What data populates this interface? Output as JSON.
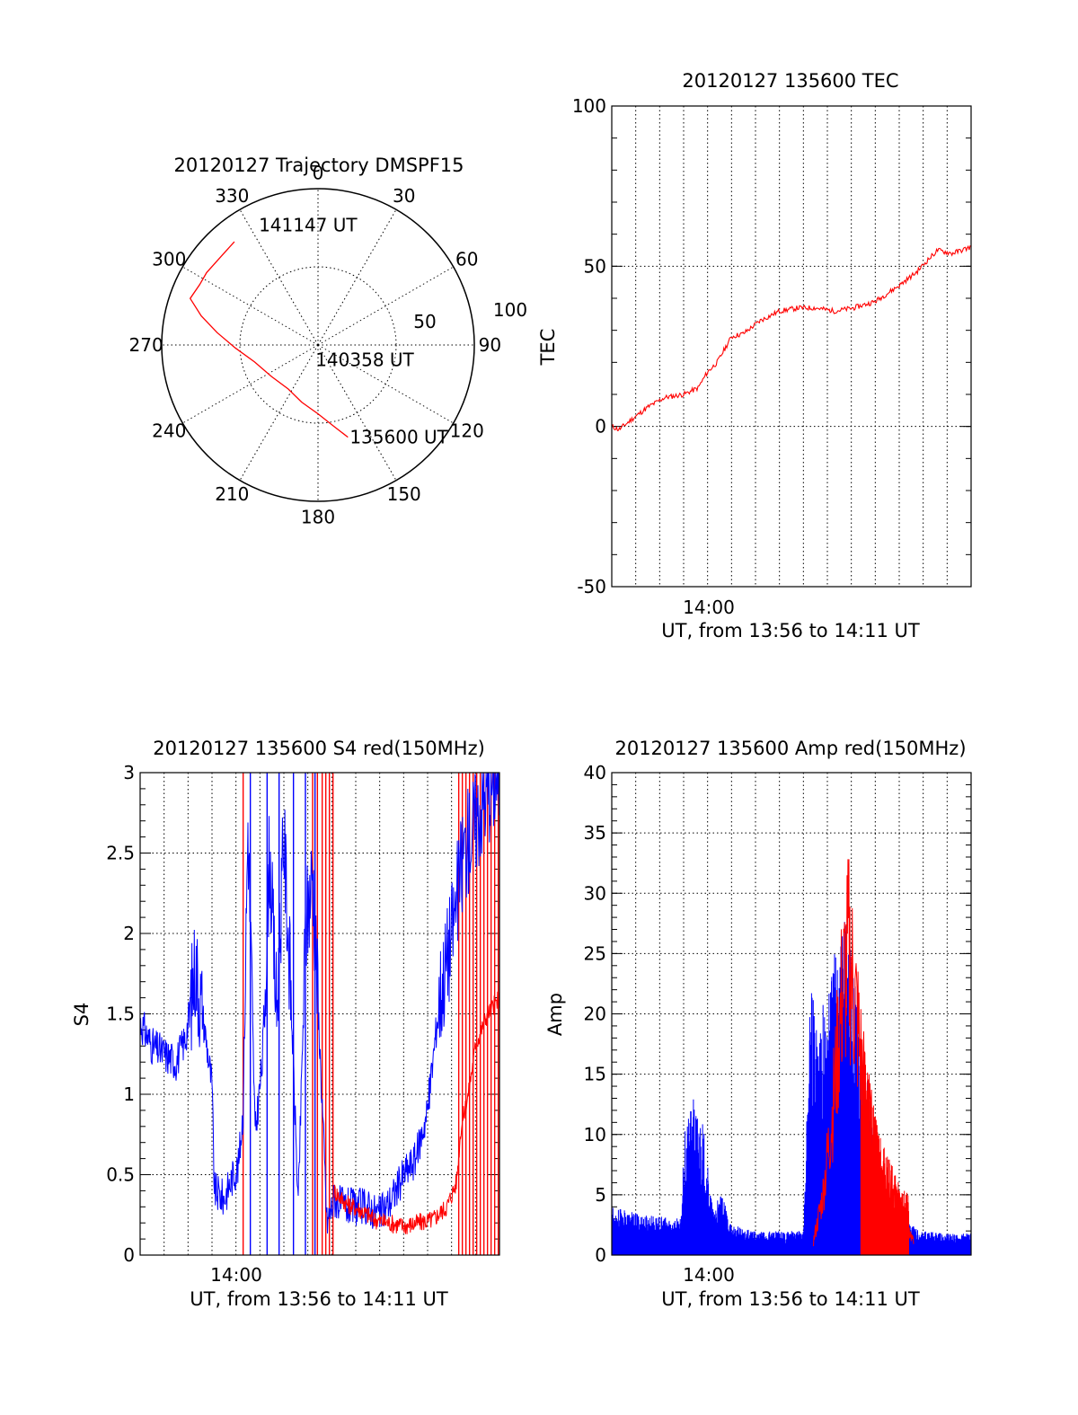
{
  "chart_data": [
    {
      "id": "trajectory",
      "type": "polar",
      "title": "20120127 Trajectory DMSPF15",
      "azimuth_labels": [
        {
          "deg": 0,
          "text": "0"
        },
        {
          "deg": 30,
          "text": "30"
        },
        {
          "deg": 60,
          "text": "60"
        },
        {
          "deg": 90,
          "text": "90"
        },
        {
          "deg": 120,
          "text": "120"
        },
        {
          "deg": 150,
          "text": "150"
        },
        {
          "deg": 180,
          "text": "180"
        },
        {
          "deg": 210,
          "text": "210"
        },
        {
          "deg": 240,
          "text": "240"
        },
        {
          "deg": 270,
          "text": "270"
        },
        {
          "deg": 300,
          "text": "300"
        },
        {
          "deg": 330,
          "text": "330"
        }
      ],
      "radius_labels": [
        "50",
        "100"
      ],
      "rmax": 100,
      "rings": [
        50,
        100
      ],
      "trajectory_color": "#ff0000",
      "trajectory": [
        {
          "az": 162,
          "r": 62
        },
        {
          "az": 169,
          "r": 53
        },
        {
          "az": 180,
          "r": 44
        },
        {
          "az": 196,
          "r": 38
        },
        {
          "az": 214,
          "r": 34
        },
        {
          "az": 236,
          "r": 36
        },
        {
          "az": 255,
          "r": 42
        },
        {
          "az": 268,
          "r": 53
        },
        {
          "az": 277,
          "r": 65
        },
        {
          "az": 284,
          "r": 77
        },
        {
          "az": 290,
          "r": 87
        },
        {
          "az": 297,
          "r": 85
        },
        {
          "az": 303,
          "r": 85
        },
        {
          "az": 313,
          "r": 84
        },
        {
          "az": 321,
          "r": 85
        }
      ],
      "point_labels": [
        {
          "az": 333,
          "r": 86,
          "text": "141147 UT"
        },
        {
          "az": 196,
          "r": 10,
          "text": "140358 UT"
        },
        {
          "az": 162,
          "r": 62,
          "text": "135600 UT"
        }
      ]
    },
    {
      "id": "tec",
      "type": "line",
      "title": "20120127 135600 TEC",
      "ylabel": "TEC",
      "xlabel": "UT, from 13:56 to 14:11 UT",
      "xtick_label": "14:00",
      "xlim": [
        0,
        15
      ],
      "ylim": [
        -50,
        100
      ],
      "yticks": [
        -50,
        0,
        50,
        100
      ],
      "series": [
        {
          "color": "#ff0000",
          "x": [
            0,
            0.3,
            0.8,
            1.5,
            2.2,
            3.0,
            3.6,
            4.0,
            4.4,
            5.0,
            5.5,
            6.2,
            7.0,
            7.8,
            8.5,
            9.3,
            10.1,
            11.0,
            12.0,
            12.7,
            13.2,
            13.6,
            14.2,
            15.0
          ],
          "y": [
            0,
            -1,
            2,
            6,
            9,
            10,
            12,
            17,
            20,
            28,
            29,
            33,
            36,
            37,
            37,
            36,
            37,
            39,
            44,
            48,
            52,
            55,
            54,
            56
          ]
        }
      ]
    },
    {
      "id": "s4",
      "type": "line",
      "title": "20120127 135600 S4 red(150MHz)",
      "ylabel": "S4",
      "xlabel": "UT, from 13:56 to 14:11 UT",
      "xtick_label": "14:00",
      "xlim": [
        0,
        15
      ],
      "ylim": [
        0,
        3
      ],
      "yticks": [
        0,
        0.5,
        1,
        1.5,
        2,
        2.5,
        3
      ],
      "ytick_labels": [
        "0",
        "0.5",
        "1",
        "1.5",
        "2",
        "2.5",
        "3"
      ],
      "series": [
        {
          "color": "#0000ff",
          "x": [
            0,
            0.5,
            1.0,
            1.5,
            1.9,
            2.1,
            2.3,
            2.7,
            3.0,
            3.1,
            3.5,
            3.9,
            4.1,
            4.3,
            4.5,
            4.8,
            5.1,
            5.4,
            5.7,
            6.0,
            6.3,
            6.6,
            6.9,
            7.2,
            7.5,
            7.8,
            8.1,
            8.5,
            9.0,
            9.5,
            10.0,
            10.5,
            11.0,
            11.5,
            12.0,
            12.5,
            13.0,
            13.5,
            14.0,
            14.5,
            15.0
          ],
          "y": [
            1.45,
            1.3,
            1.25,
            1.2,
            1.35,
            1.55,
            1.8,
            1.4,
            1.05,
            0.4,
            0.35,
            0.5,
            0.55,
            0.9,
            2.7,
            0.75,
            1.2,
            2.5,
            1.5,
            2.6,
            1.6,
            0.3,
            2.0,
            2.4,
            1.3,
            0.2,
            0.35,
            0.3,
            0.3,
            0.3,
            0.25,
            0.35,
            0.5,
            0.6,
            0.9,
            1.6,
            2.0,
            2.5,
            2.7,
            2.9,
            3.0
          ]
        },
        {
          "color": "#ff0000",
          "x": [
            8.1,
            8.6,
            9.2,
            9.8,
            10.4,
            11.0,
            11.6,
            12.2,
            12.8,
            13.2,
            13.4,
            13.7,
            14.0,
            14.5,
            15.0
          ],
          "y": [
            0.4,
            0.32,
            0.28,
            0.22,
            0.2,
            0.18,
            0.2,
            0.22,
            0.3,
            0.45,
            0.8,
            1.0,
            1.3,
            1.5,
            1.6
          ]
        }
      ],
      "spikes": [
        {
          "color": "#ff0000",
          "x": [
            4.3,
            7.2,
            7.4,
            7.6,
            7.75,
            7.9,
            8.05,
            13.3,
            13.45,
            13.6,
            13.75,
            13.9,
            14.05,
            14.2,
            14.35,
            14.5,
            14.65,
            14.8,
            14.95
          ]
        },
        {
          "color": "#0000ff",
          "x": [
            4.6,
            5.3,
            5.8,
            6.4,
            6.9,
            7.3
          ]
        }
      ]
    },
    {
      "id": "amp",
      "type": "line",
      "title": "20120127 135600 Amp red(150MHz)",
      "ylabel": "Amp",
      "xlabel": "UT, from 13:56 to 14:11 UT",
      "xtick_label": "14:00",
      "xlim": [
        0,
        15
      ],
      "ylim": [
        0,
        40
      ],
      "yticks": [
        0,
        5,
        10,
        15,
        20,
        25,
        30,
        35,
        40
      ],
      "series": [
        {
          "color": "#ff0000",
          "x": [
            8.4,
            8.8,
            9.2,
            9.6,
            9.9,
            10.2,
            10.5,
            10.8,
            11.1,
            11.4,
            11.7,
            12.0,
            12.3,
            12.6
          ],
          "y": [
            1,
            5,
            12,
            22,
            26,
            21,
            15,
            11,
            8,
            6,
            5,
            4,
            3,
            1
          ]
        }
      ],
      "envelopes": [
        {
          "color": "#0000ff",
          "x": [
            0,
            1.0,
            2.0,
            2.9,
            3.0,
            3.4,
            3.8,
            4.2,
            4.6,
            5.0,
            6.0,
            7.0,
            8.0,
            8.3,
            8.6,
            9.0,
            9.4,
            9.8,
            10.1,
            10.4,
            10.8,
            11.2,
            11.6,
            12.0,
            12.5,
            13.0,
            14.0,
            15.0
          ],
          "y": [
            4,
            3.5,
            3.2,
            3.0,
            10,
            13,
            11,
            4,
            5,
            2.5,
            2,
            2,
            2,
            23,
            20,
            22,
            27,
            30,
            24,
            18,
            13,
            8,
            4,
            3,
            2.5,
            2,
            1.8,
            1.8
          ]
        },
        {
          "color": "#ff0000",
          "x": [
            10.4,
            10.8,
            11.2,
            11.6,
            12.0,
            12.4
          ],
          "y": [
            19,
            14,
            10,
            8,
            6,
            5
          ]
        }
      ]
    }
  ]
}
